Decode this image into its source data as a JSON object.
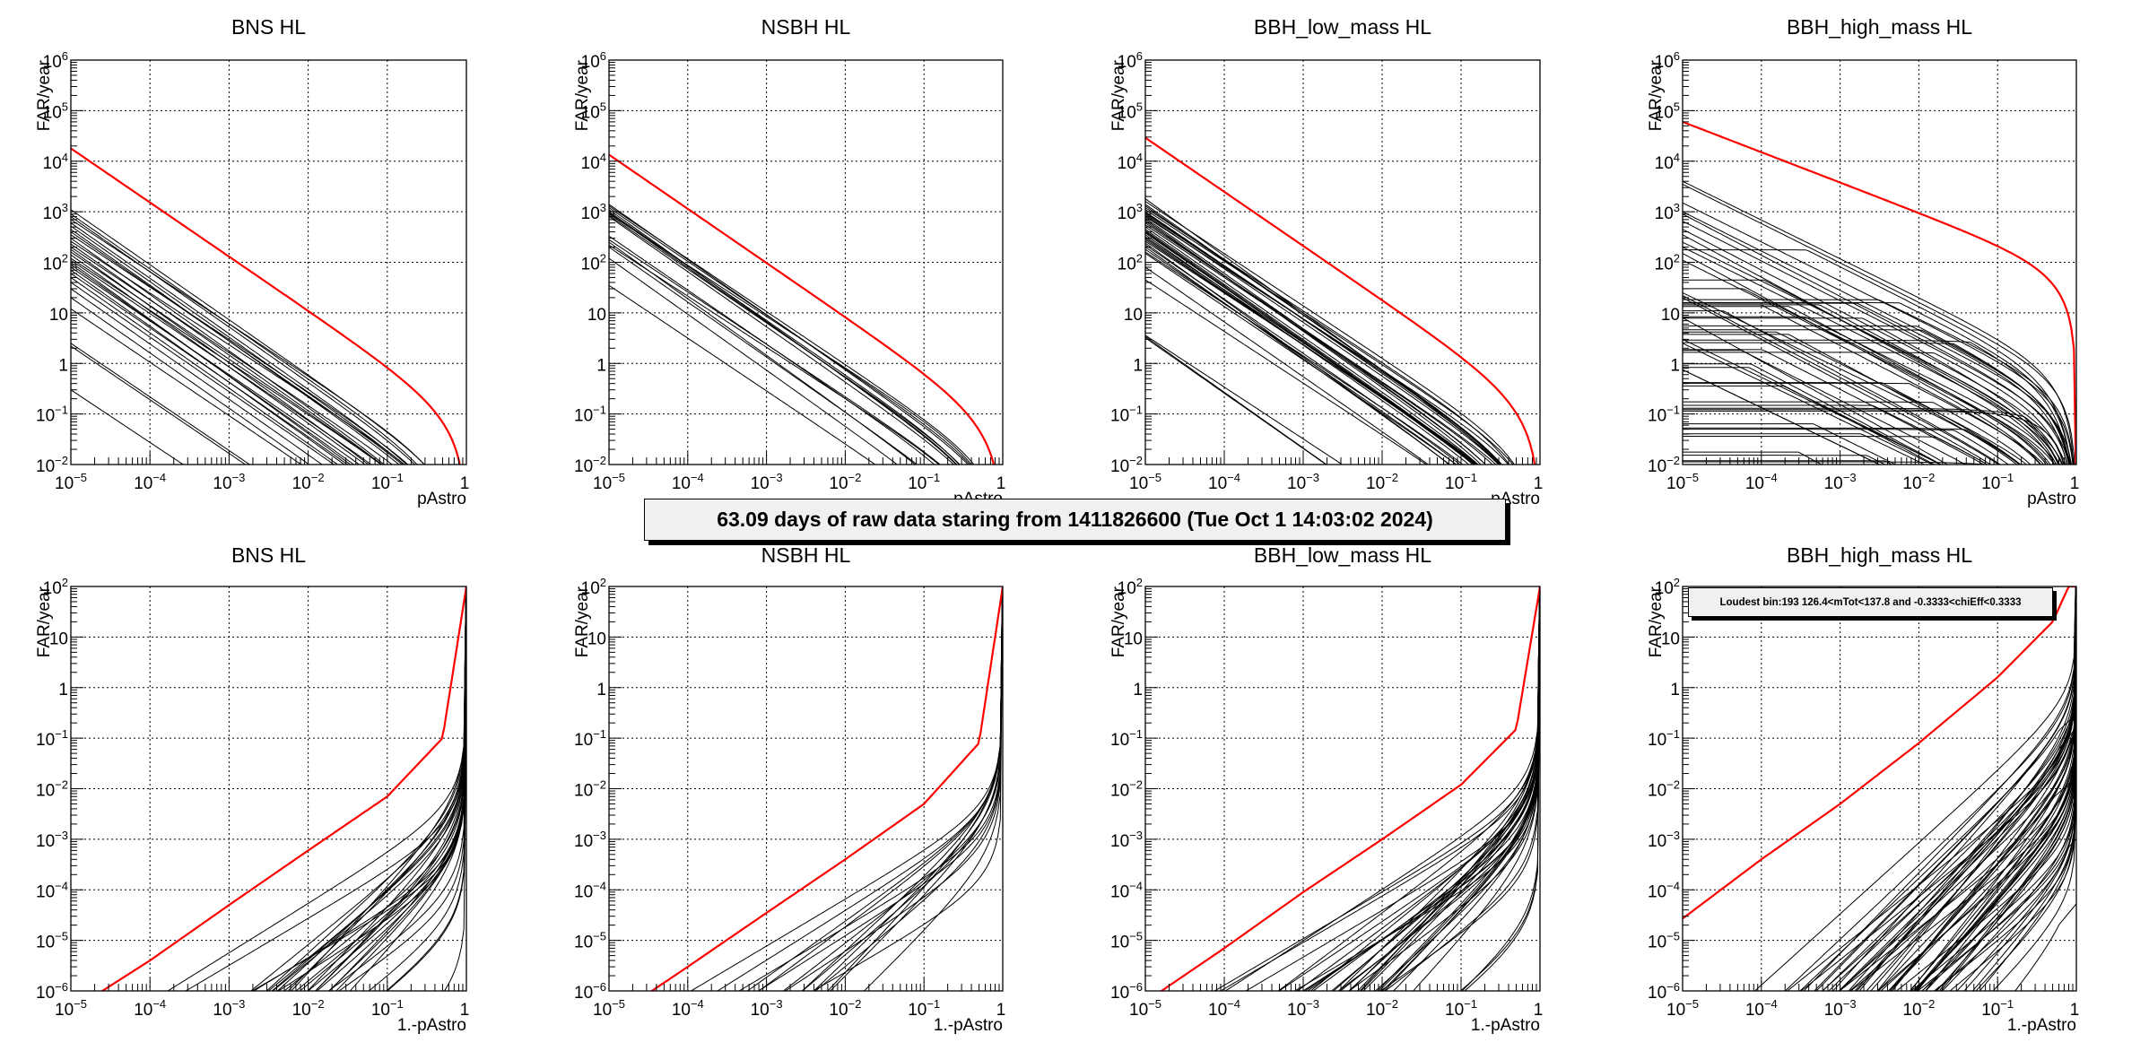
{
  "figure": {
    "stats_text": "63.09 days of raw data staring from 1411826600 (Tue Oct  1 14:03:02 2024)",
    "loudest_text": "Loudest bin:193 126.4<mTot<137.8 and -0.3333<chiEff<0.3333",
    "colors": {
      "threshold": "#ff0000",
      "bins": "#000000",
      "grid": "#000000",
      "box_fill": "#f0f0f0"
    }
  },
  "chart_data": [
    {
      "type": "line",
      "panel": "BNS-top",
      "title": "BNS HL",
      "xlabel": "pAstro",
      "ylabel": "FAR/year",
      "xscale": "log",
      "yscale": "log",
      "xlim": [
        1e-05,
        1
      ],
      "ylim": [
        0.01,
        1000000
      ],
      "grid": true,
      "mode": "pastro",
      "xticks": [
        "10^-5",
        "10^-4",
        "10^-3",
        "10^-2",
        "10^-1",
        "1"
      ],
      "yticks": [
        "10^-2",
        "10^-1",
        "1",
        "10",
        "10^2",
        "10^3",
        "10^4",
        "10^5",
        "10^6"
      ],
      "red_curve": {
        "A": 0.08,
        "s": 1.07,
        "k": 1.3,
        "points": [
          [
            1e-05,
            18000
          ],
          [
            0.0001,
            1300
          ],
          [
            0.001,
            110
          ],
          [
            0.01,
            9
          ],
          [
            0.1,
            0.8
          ],
          [
            0.8,
            0.01
          ]
        ]
      },
      "black_curves": {
        "s": 1.07,
        "k": 1.3,
        "far_at_1e-5": [
          1100,
          900,
          800,
          700,
          600,
          520,
          450,
          400,
          350,
          300,
          260,
          230,
          200,
          180,
          160,
          140,
          120,
          110,
          100,
          90,
          80,
          70,
          60,
          50,
          40,
          30,
          20,
          12,
          2.5,
          2.2,
          0.3
        ]
      }
    },
    {
      "type": "line",
      "panel": "NSBH-top",
      "title": "NSBH HL",
      "xlabel": "pAstro",
      "ylabel": "FAR/year",
      "xscale": "log",
      "yscale": "log",
      "xlim": [
        1e-05,
        1
      ],
      "ylim": [
        0.01,
        1000000
      ],
      "grid": true,
      "mode": "pastro",
      "xticks": [
        "10^-5",
        "10^-4",
        "10^-3",
        "10^-2",
        "10^-1",
        "1"
      ],
      "yticks": [
        "10^-2",
        "10^-1",
        "1",
        "10",
        "10^2",
        "10^3",
        "10^4",
        "10^5",
        "10^6"
      ],
      "red_curve": {
        "A": 0.06,
        "s": 1.07,
        "k": 1.4,
        "points": [
          [
            1e-05,
            14000
          ],
          [
            0.0001,
            1000
          ],
          [
            0.001,
            90
          ],
          [
            0.01,
            7
          ],
          [
            0.1,
            0.5
          ],
          [
            0.8,
            0.01
          ]
        ]
      },
      "black_curves": {
        "s": 1.07,
        "k": 1.3,
        "far_at_1e-5": [
          1400,
          1300,
          1200,
          1100,
          1000,
          950,
          900,
          850,
          800,
          330,
          280,
          250,
          220,
          200,
          120,
          35
        ]
      }
    },
    {
      "type": "line",
      "panel": "BBH_low_mass-top",
      "title": "BBH_low_mass HL",
      "xlabel": "pAstro",
      "ylabel": "FAR/year",
      "xscale": "log",
      "yscale": "log",
      "xlim": [
        1e-05,
        1
      ],
      "ylim": [
        0.01,
        1000000
      ],
      "grid": true,
      "mode": "pastro",
      "xticks": [
        "10^-5",
        "10^-4",
        "10^-3",
        "10^-2",
        "10^-1",
        "1"
      ],
      "yticks": [
        "10^-2",
        "10^-1",
        "1",
        "10",
        "10^2",
        "10^3",
        "10^4",
        "10^5",
        "10^6"
      ],
      "red_curve": {
        "A": 0.13,
        "s": 1.07,
        "k": 1.4,
        "points": [
          [
            1e-05,
            33000
          ],
          [
            0.0001,
            2500
          ],
          [
            0.001,
            200
          ],
          [
            0.01,
            15
          ],
          [
            0.1,
            1.1
          ],
          [
            0.85,
            0.01
          ]
        ]
      },
      "black_curves": {
        "s": 1.07,
        "k": 1.3,
        "far_at_1e-5": [
          1800,
          1600,
          1400,
          1300,
          1200,
          1100,
          1000,
          950,
          900,
          850,
          800,
          750,
          700,
          650,
          600,
          550,
          500,
          450,
          420,
          400,
          380,
          350,
          320,
          300,
          280,
          260,
          240,
          220,
          200,
          180,
          160,
          150,
          80,
          45,
          3.6,
          3.4,
          3.2
        ]
      }
    },
    {
      "type": "line",
      "panel": "BBH_high_mass-top",
      "title": "BBH_high_mass HL",
      "xlabel": "pAstro",
      "ylabel": "FAR/year",
      "xscale": "log",
      "yscale": "log",
      "xlim": [
        1e-05,
        1
      ],
      "ylim": [
        0.01,
        1000000
      ],
      "grid": true,
      "mode": "pastro",
      "xticks": [
        "10^-5",
        "10^-4",
        "10^-3",
        "10^-2",
        "10^-1",
        "1"
      ],
      "yticks": [
        "10^-2",
        "10^-1",
        "1",
        "10",
        "10^2",
        "10^3",
        "10^4",
        "10^5",
        "10^6"
      ],
      "red_curve": {
        "A": 60,
        "s": 0.6,
        "k": 1.3,
        "points": [
          [
            1e-05,
            60000
          ],
          [
            0.0001,
            19000
          ],
          [
            0.001,
            4500
          ],
          [
            0.01,
            700
          ],
          [
            0.1,
            110
          ],
          [
            0.5,
            15
          ],
          [
            0.95,
            0.5
          ],
          [
            1,
            0.01
          ]
        ]
      },
      "black_curves": {
        "s": 0.8,
        "k": 1.6,
        "plateau": true,
        "far_at_1e-5": [
          4000,
          3500,
          3000,
          2600,
          2200,
          1800,
          1500,
          1300,
          1200,
          1100,
          1000,
          900,
          800,
          700,
          650,
          600,
          550,
          500,
          450,
          400,
          350,
          300,
          250,
          200,
          180,
          150,
          130,
          120,
          110,
          100,
          90,
          80,
          70,
          60,
          50,
          50,
          45,
          40,
          35,
          30,
          25,
          22,
          20,
          18,
          15,
          12,
          10,
          9,
          8,
          7,
          6,
          5,
          4,
          3.5,
          3,
          2.5,
          2,
          1.8,
          1.7,
          1.2,
          1,
          0.75,
          0.75,
          0.3
        ]
      }
    },
    {
      "type": "line",
      "panel": "BNS-bottom",
      "title": "BNS HL",
      "xlabel": "1.-pAstro",
      "ylabel": "FAR/year",
      "xscale": "log",
      "yscale": "log",
      "xlim": [
        1e-05,
        1
      ],
      "ylim": [
        1e-06,
        100
      ],
      "grid": true,
      "mode": "one_minus_pastro",
      "xticks": [
        "10^-5",
        "10^-4",
        "10^-3",
        "10^-2",
        "10^-1",
        "1"
      ],
      "yticks": [
        "10^-6",
        "10^-5",
        "10^-4",
        "10^-3",
        "10^-2",
        "10^-1",
        "1",
        "10",
        "10^2"
      ],
      "red_curve": {
        "points": [
          [
            2.5e-05,
            1e-06
          ],
          [
            0.0001,
            4e-06
          ],
          [
            0.001,
            5e-05
          ],
          [
            0.01,
            0.0006
          ],
          [
            0.1,
            0.007
          ],
          [
            0.5,
            0.1
          ],
          [
            1,
            100
          ]
        ]
      }
    },
    {
      "type": "line",
      "panel": "NSBH-bottom",
      "title": "NSBH HL",
      "xlabel": "1.-pAstro",
      "ylabel": "FAR/year",
      "xscale": "log",
      "yscale": "log",
      "xlim": [
        1e-05,
        1
      ],
      "ylim": [
        1e-06,
        100
      ],
      "grid": true,
      "mode": "one_minus_pastro",
      "xticks": [
        "10^-5",
        "10^-4",
        "10^-3",
        "10^-2",
        "10^-1",
        "1"
      ],
      "yticks": [
        "10^-6",
        "10^-5",
        "10^-4",
        "10^-3",
        "10^-2",
        "10^-1",
        "1",
        "10",
        "10^2"
      ],
      "red_curve": {
        "points": [
          [
            3.5e-05,
            1e-06
          ],
          [
            0.0001,
            3e-06
          ],
          [
            0.001,
            3.5e-05
          ],
          [
            0.01,
            0.0004
          ],
          [
            0.1,
            0.005
          ],
          [
            0.5,
            0.08
          ],
          [
            1,
            100
          ]
        ]
      }
    },
    {
      "type": "line",
      "panel": "BBH_low_mass-bottom",
      "title": "BBH_low_mass HL",
      "xlabel": "1.-pAstro",
      "ylabel": "FAR/year",
      "xscale": "log",
      "yscale": "log",
      "xlim": [
        1e-05,
        1
      ],
      "ylim": [
        1e-06,
        100
      ],
      "grid": true,
      "mode": "one_minus_pastro",
      "xticks": [
        "10^-5",
        "10^-4",
        "10^-3",
        "10^-2",
        "10^-1",
        "1"
      ],
      "yticks": [
        "10^-6",
        "10^-5",
        "10^-4",
        "10^-3",
        "10^-2",
        "10^-1",
        "1",
        "10",
        "10^2"
      ],
      "red_curve": {
        "points": [
          [
            1.6e-05,
            1e-06
          ],
          [
            0.0001,
            7e-06
          ],
          [
            0.001,
            9e-05
          ],
          [
            0.01,
            0.001
          ],
          [
            0.1,
            0.012
          ],
          [
            0.5,
            0.15
          ],
          [
            1,
            100
          ]
        ]
      }
    },
    {
      "type": "line",
      "panel": "BBH_high_mass-bottom",
      "title": "BBH_high_mass HL",
      "xlabel": "1.-pAstro",
      "ylabel": "FAR/year",
      "xscale": "log",
      "yscale": "log",
      "xlim": [
        1e-05,
        1
      ],
      "ylim": [
        1e-06,
        100
      ],
      "grid": true,
      "mode": "one_minus_pastro",
      "xticks": [
        "10^-5",
        "10^-4",
        "10^-3",
        "10^-2",
        "10^-1",
        "1"
      ],
      "yticks": [
        "10^-6",
        "10^-5",
        "10^-4",
        "10^-3",
        "10^-2",
        "10^-1",
        "1",
        "10",
        "10^2"
      ],
      "annotation": "Loudest bin:193 126.4<mTot<137.8 and -0.3333<chiEff<0.3333",
      "red_curve": {
        "points": [
          [
            1e-05,
            2.7e-05
          ],
          [
            0.0001,
            0.0004
          ],
          [
            0.001,
            0.005
          ],
          [
            0.01,
            0.08
          ],
          [
            0.1,
            1.6
          ],
          [
            0.5,
            20
          ],
          [
            0.8,
            100
          ]
        ]
      }
    }
  ]
}
